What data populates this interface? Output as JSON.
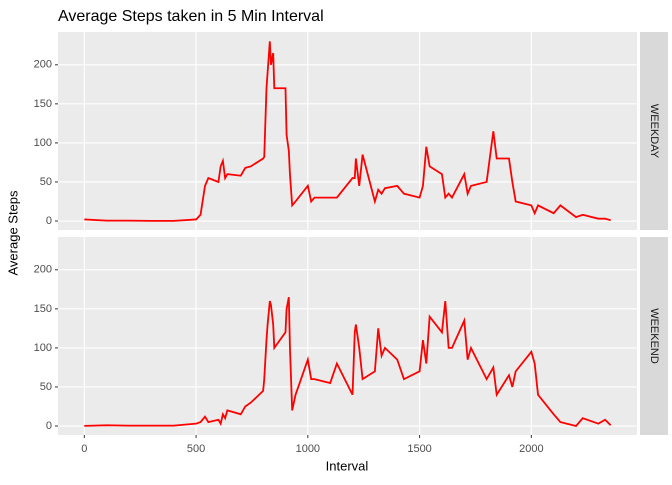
{
  "chart_data": {
    "type": "line",
    "title": "Average Steps taken in 5 Min Interval",
    "x_label": "Interval",
    "y_label": "Average Steps",
    "x": [
      0,
      100,
      200,
      300,
      400,
      500,
      520,
      540,
      555,
      600,
      610,
      620,
      630,
      640,
      700,
      720,
      745,
      800,
      805,
      815,
      820,
      830,
      835,
      845,
      850,
      900,
      905,
      915,
      920,
      930,
      945,
      1000,
      1015,
      1030,
      1100,
      1130,
      1200,
      1210,
      1215,
      1230,
      1245,
      1300,
      1315,
      1330,
      1345,
      1400,
      1430,
      1500,
      1515,
      1530,
      1545,
      1600,
      1615,
      1630,
      1645,
      1700,
      1715,
      1730,
      1800,
      1830,
      1845,
      1900,
      1915,
      1930,
      2000,
      2015,
      2030,
      2100,
      2130,
      2200,
      2230,
      2300,
      2330,
      2355
    ],
    "series": [
      {
        "name": "WEEKDAY",
        "color": "#ff0000",
        "values": [
          2,
          0.5,
          0.5,
          0.2,
          0.2,
          2,
          8,
          45,
          55,
          50,
          70,
          77,
          55,
          60,
          58,
          68,
          70,
          80,
          82,
          170,
          190,
          230,
          200,
          215,
          170,
          170,
          110,
          90,
          60,
          20,
          25,
          45,
          25,
          30,
          30,
          30,
          55,
          55,
          80,
          45,
          85,
          25,
          40,
          35,
          42,
          45,
          35,
          30,
          45,
          95,
          70,
          60,
          30,
          35,
          30,
          60,
          35,
          45,
          50,
          115,
          80,
          80,
          50,
          25,
          20,
          10,
          20,
          10,
          20,
          5,
          8,
          3,
          3,
          1
        ]
      },
      {
        "name": "WEEKEND",
        "color": "#ff0000",
        "values": [
          0.2,
          1,
          0.5,
          0.5,
          0.5,
          3,
          5,
          12,
          5,
          8,
          3,
          15,
          10,
          20,
          15,
          25,
          30,
          45,
          60,
          110,
          130,
          160,
          155,
          130,
          100,
          120,
          150,
          165,
          100,
          20,
          40,
          85,
          60,
          60,
          55,
          80,
          40,
          120,
          130,
          100,
          60,
          70,
          125,
          90,
          100,
          85,
          60,
          70,
          110,
          80,
          140,
          120,
          160,
          100,
          100,
          135,
          85,
          100,
          60,
          75,
          40,
          65,
          50,
          70,
          95,
          80,
          40,
          15,
          5,
          0,
          10,
          3,
          8,
          1
        ]
      }
    ],
    "xlim": [
      -117.75,
      2472.75
    ],
    "xticks": [
      0,
      500,
      1000,
      1500,
      2000
    ],
    "ylim": [
      -11.5,
      242
    ],
    "yticks": [
      0,
      50,
      100,
      150,
      200
    ],
    "grid": true
  }
}
